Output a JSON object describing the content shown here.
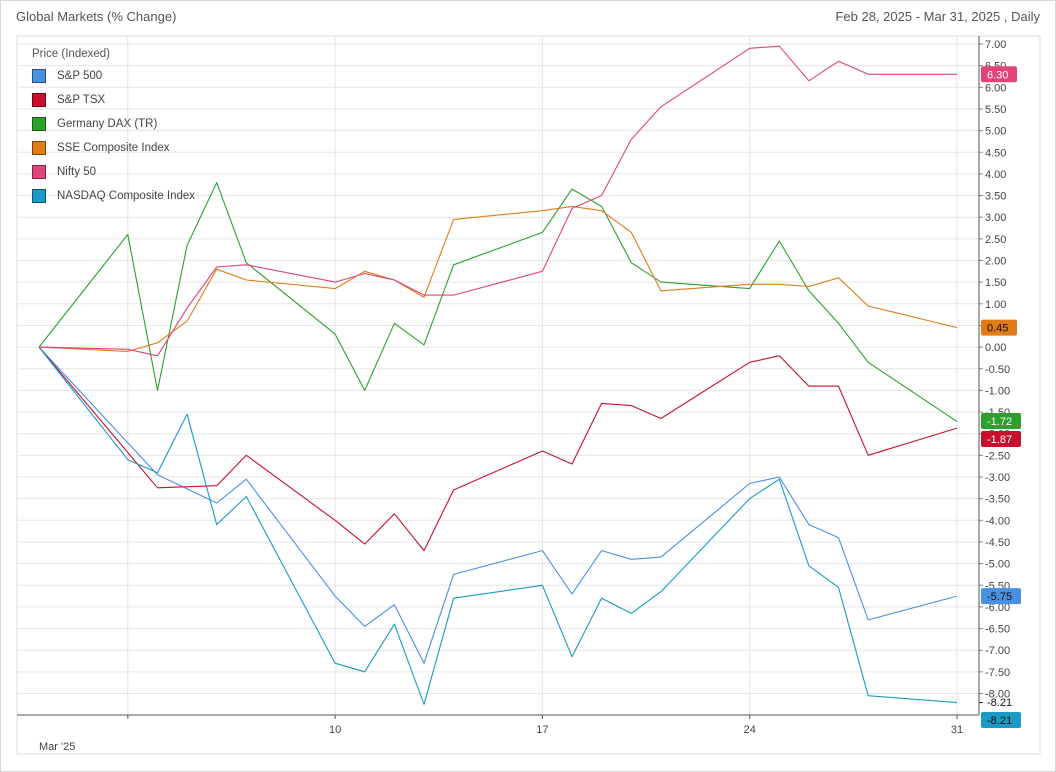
{
  "header": {
    "title": "Global Markets (% Change)",
    "range": "Feb 28, 2025 - Mar 31, 2025 , Daily"
  },
  "chart_data": {
    "type": "line",
    "ylabel": "Price (Indexed)",
    "ylim": [
      -8.5,
      7.0
    ],
    "ytick_step": 0.5,
    "y_ticks": [
      "7.00",
      "6.50",
      "6.00",
      "5.50",
      "5.00",
      "4.50",
      "4.00",
      "3.50",
      "3.00",
      "2.50",
      "2.00",
      "1.50",
      "1.00",
      "0.50",
      "0.00",
      "-0.50",
      "-1.00",
      "-1.50",
      "-2.00",
      "-2.50",
      "-3.00",
      "-3.50",
      "-4.00",
      "-4.50",
      "-5.00",
      "-5.50",
      "-6.00",
      "-6.50",
      "-7.00",
      "-7.50",
      "-8.00"
    ],
    "x": [
      "2025-02-28",
      "2025-03-03",
      "2025-03-04",
      "2025-03-05",
      "2025-03-06",
      "2025-03-07",
      "2025-03-10",
      "2025-03-11",
      "2025-03-12",
      "2025-03-13",
      "2025-03-14",
      "2025-03-17",
      "2025-03-18",
      "2025-03-19",
      "2025-03-20",
      "2025-03-21",
      "2025-03-24",
      "2025-03-25",
      "2025-03-26",
      "2025-03-27",
      "2025-03-28",
      "2025-03-31"
    ],
    "x_ticks": [
      {
        "date": "2025-03-03",
        "label": "Mar '25"
      },
      {
        "date": "2025-03-10",
        "label": "10"
      },
      {
        "date": "2025-03-17",
        "label": "17"
      },
      {
        "date": "2025-03-24",
        "label": "24"
      },
      {
        "date": "2025-03-31",
        "label": "31"
      }
    ],
    "grid": true,
    "legend_position": "top-left",
    "series": [
      {
        "name": "S&P 500",
        "color": "#4a90e2",
        "end_label": "-5.75",
        "values": [
          0,
          null,
          -2.95,
          null,
          -3.6,
          -3.05,
          -5.75,
          -6.45,
          -5.95,
          -7.3,
          -5.25,
          -4.7,
          -5.7,
          -4.7,
          -4.9,
          -4.85,
          -3.15,
          -3.0,
          -4.1,
          -4.4,
          -6.3,
          -5.75
        ]
      },
      {
        "name": "S&P TSX",
        "color": "#c8102e",
        "end_label": "-1.87",
        "values": [
          0,
          null,
          -3.25,
          null,
          -3.2,
          -2.5,
          -4.0,
          -4.55,
          -3.85,
          -4.7,
          -3.3,
          -2.4,
          -2.7,
          -1.3,
          -1.35,
          -1.65,
          -0.35,
          -0.2,
          -0.9,
          -0.9,
          -2.5,
          -1.87
        ]
      },
      {
        "name": "Germany DAX (TR)",
        "color": "#2ca02c",
        "end_label": "-1.72",
        "values": [
          0,
          2.6,
          -1.0,
          2.35,
          3.8,
          1.95,
          0.3,
          -1.0,
          0.55,
          0.05,
          1.9,
          2.65,
          3.65,
          3.25,
          1.95,
          1.5,
          1.35,
          2.45,
          1.3,
          0.55,
          -0.35,
          -1.72
        ]
      },
      {
        "name": "SSE Composite Index",
        "color": "#e07b1a",
        "end_label": "0.45",
        "values": [
          0,
          -0.1,
          0.1,
          0.6,
          1.8,
          1.55,
          1.35,
          1.75,
          1.55,
          1.15,
          2.95,
          3.15,
          3.25,
          3.15,
          2.65,
          1.3,
          1.45,
          1.45,
          1.4,
          1.6,
          0.95,
          0.45
        ]
      },
      {
        "name": "Nifty 50",
        "color": "#e0447a",
        "end_label": "6.30",
        "values": [
          0,
          -0.05,
          -0.2,
          0.9,
          1.85,
          1.9,
          1.5,
          1.7,
          1.55,
          1.2,
          1.2,
          1.75,
          3.2,
          3.5,
          4.8,
          5.55,
          6.9,
          6.95,
          6.15,
          6.6,
          6.3,
          6.3
        ]
      },
      {
        "name": "NASDAQ Composite Index",
        "color": "#1a9ac4",
        "end_label": "-8.21",
        "values": [
          0,
          -2.6,
          -2.9,
          -1.55,
          -4.1,
          -3.45,
          -7.3,
          -7.5,
          -6.4,
          -8.25,
          -5.8,
          -5.5,
          -7.15,
          -5.8,
          -6.15,
          -5.65,
          -3.5,
          -3.05,
          -5.05,
          -5.55,
          -8.05,
          -8.21
        ]
      }
    ],
    "last_value_marker": {
      "value": -8.21,
      "label": "-8.21"
    }
  }
}
